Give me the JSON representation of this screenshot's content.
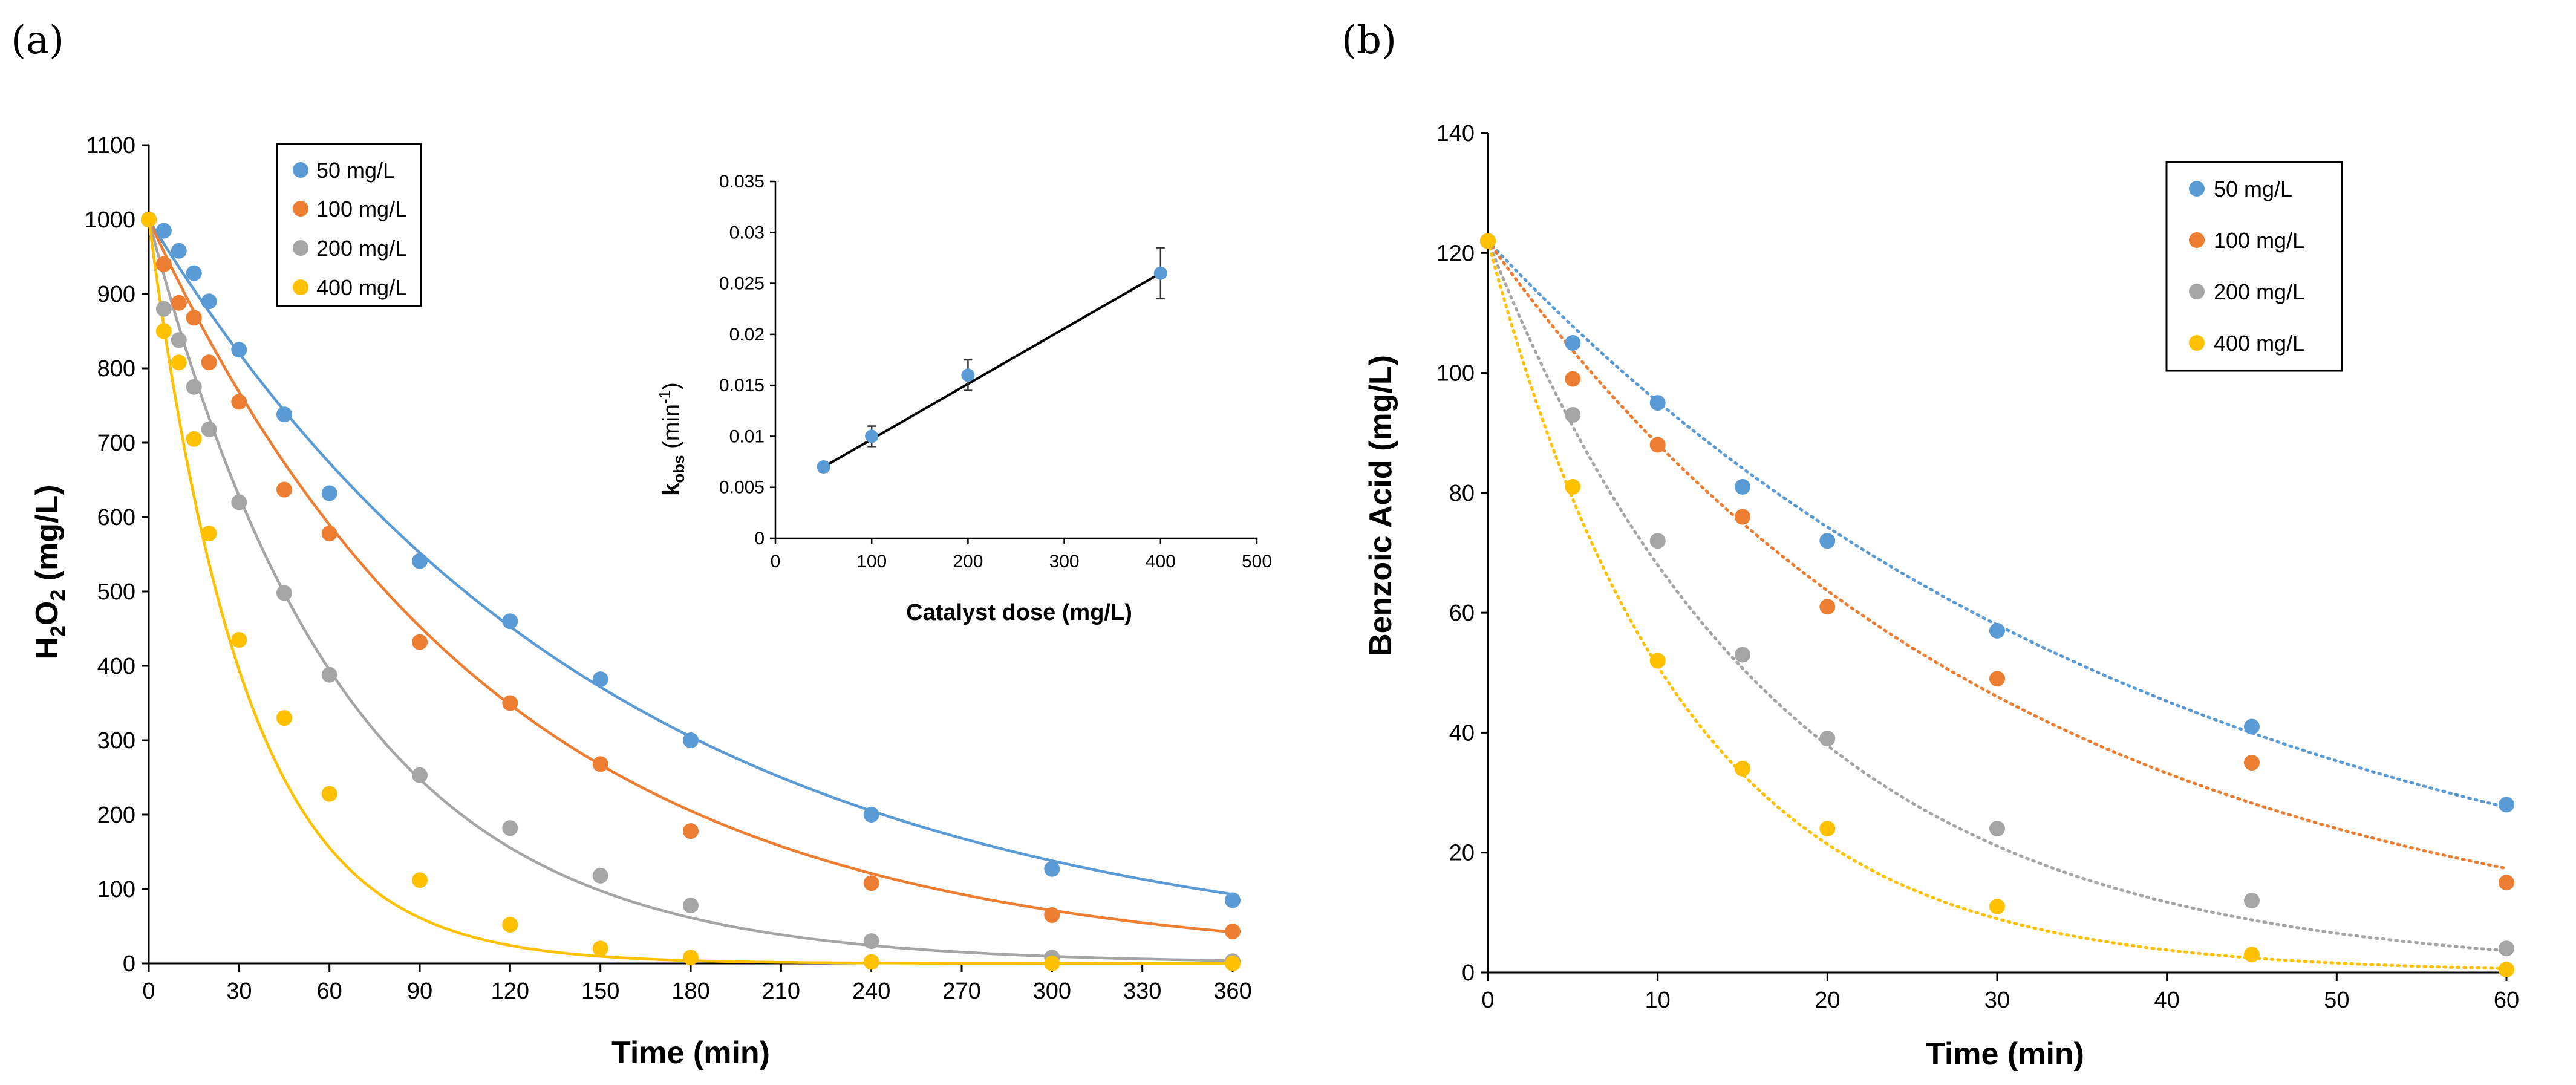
{
  "panel_labels": {
    "a": "(a)",
    "b": "(b)"
  },
  "colors": {
    "s50": "#5B9BD5",
    "s100": "#ED7D31",
    "s200": "#A5A5A5",
    "s400": "#FFC000",
    "axis": "#000000",
    "tickline": "#BFBFBF",
    "fitline": "#000000"
  },
  "chart_data": [
    {
      "id": "panel-a",
      "type": "scatter",
      "title": "",
      "xlabel": "Time (min)",
      "ylabel": "H2O2 (mg/L)",
      "ylabel_parts": {
        "main": "H",
        "sub1": "2",
        "mid": "O",
        "sub2": "2",
        "unit": " (mg/L)"
      },
      "xlim": [
        0,
        360
      ],
      "ylim": [
        0,
        1100
      ],
      "xticks": [
        0,
        30,
        60,
        90,
        120,
        150,
        180,
        210,
        240,
        270,
        300,
        330,
        360
      ],
      "yticks": [
        0,
        100,
        200,
        300,
        400,
        500,
        600,
        700,
        800,
        900,
        1000,
        1100
      ],
      "legend_position": "top-left",
      "fit": "solid",
      "series": [
        {
          "name": "50 mg/L",
          "color": "#5B9BD5",
          "k": 0.0066,
          "x": [
            0,
            5,
            10,
            15,
            20,
            30,
            45,
            60,
            90,
            120,
            150,
            180,
            240,
            300,
            360
          ],
          "y": [
            1000,
            985,
            958,
            928,
            890,
            825,
            738,
            632,
            541,
            460,
            382,
            300,
            200,
            127,
            85
          ]
        },
        {
          "name": "100 mg/L",
          "color": "#ED7D31",
          "k": 0.0088,
          "x": [
            0,
            5,
            10,
            15,
            20,
            30,
            45,
            60,
            90,
            120,
            150,
            180,
            240,
            300,
            360
          ],
          "y": [
            1000,
            940,
            888,
            868,
            808,
            755,
            637,
            578,
            432,
            350,
            268,
            178,
            108,
            65,
            43
          ]
        },
        {
          "name": "200 mg/L",
          "color": "#A5A5A5",
          "k": 0.0155,
          "x": [
            0,
            5,
            10,
            15,
            20,
            30,
            45,
            60,
            90,
            120,
            150,
            180,
            240,
            300,
            360
          ],
          "y": [
            1000,
            880,
            838,
            775,
            718,
            620,
            498,
            388,
            253,
            182,
            118,
            78,
            30,
            8,
            3
          ]
        },
        {
          "name": "400 mg/L",
          "color": "#FFC000",
          "k": 0.031,
          "x": [
            0,
            5,
            10,
            15,
            20,
            30,
            45,
            60,
            90,
            120,
            150,
            180,
            240,
            300,
            360
          ],
          "y": [
            1000,
            850,
            808,
            705,
            578,
            435,
            330,
            228,
            112,
            52,
            20,
            8,
            2,
            0,
            0
          ]
        }
      ]
    },
    {
      "id": "panel-a-inset",
      "type": "scatter",
      "xlabel": "Catalyst dose (mg/L)",
      "ylabel": "kobs (min-1)",
      "ylabel_parts": {
        "k": "k",
        "sub": "obs",
        "unit": " (min",
        "sup": "-1",
        "close": ")"
      },
      "xlim": [
        0,
        500
      ],
      "ylim": [
        0,
        0.035
      ],
      "xticks": [
        0,
        100,
        200,
        300,
        400,
        500
      ],
      "yticks": [
        "0",
        "0.005",
        "0.01",
        "0.015",
        "0.02",
        "0.025",
        "0.03",
        "0.035"
      ],
      "points": {
        "x": [
          50,
          100,
          200,
          400
        ],
        "y": [
          0.007,
          0.01,
          0.016,
          0.026
        ],
        "err": [
          0.0005,
          0.001,
          0.0015,
          0.0025
        ]
      },
      "trendline": {
        "slope": 5.43e-05,
        "intercept": 0.00428,
        "x_range": [
          50,
          400
        ]
      }
    },
    {
      "id": "panel-b",
      "type": "scatter",
      "title": "",
      "xlabel": "Time (min)",
      "ylabel": "Benzoic Acid (mg/L)",
      "xlim": [
        0,
        60
      ],
      "ylim": [
        0,
        140
      ],
      "xticks": [
        0,
        10,
        20,
        30,
        40,
        50,
        60
      ],
      "yticks": [
        0,
        20,
        40,
        60,
        80,
        100,
        120,
        140
      ],
      "legend_position": "top-right",
      "fit": "dotted",
      "series": [
        {
          "name": "50 mg/L",
          "color": "#5B9BD5",
          "k": 0.0248,
          "x": [
            0,
            5,
            10,
            15,
            20,
            30,
            45,
            60
          ],
          "y": [
            122,
            105,
            95,
            81,
            72,
            57,
            41,
            28
          ]
        },
        {
          "name": "100 mg/L",
          "color": "#ED7D31",
          "k": 0.0325,
          "x": [
            0,
            5,
            10,
            15,
            20,
            30,
            45,
            60
          ],
          "y": [
            122,
            99,
            88,
            76,
            61,
            49,
            35,
            15
          ]
        },
        {
          "name": "200 mg/L",
          "color": "#A5A5A5",
          "k": 0.0585,
          "x": [
            0,
            5,
            10,
            15,
            20,
            30,
            45,
            60
          ],
          "y": [
            122,
            93,
            72,
            53,
            39,
            24,
            12,
            4
          ]
        },
        {
          "name": "400 mg/L",
          "color": "#FFC000",
          "k": 0.087,
          "x": [
            0,
            5,
            10,
            15,
            20,
            30,
            45,
            60
          ],
          "y": [
            122,
            81,
            52,
            34,
            24,
            11,
            3,
            0.5
          ]
        }
      ]
    }
  ]
}
